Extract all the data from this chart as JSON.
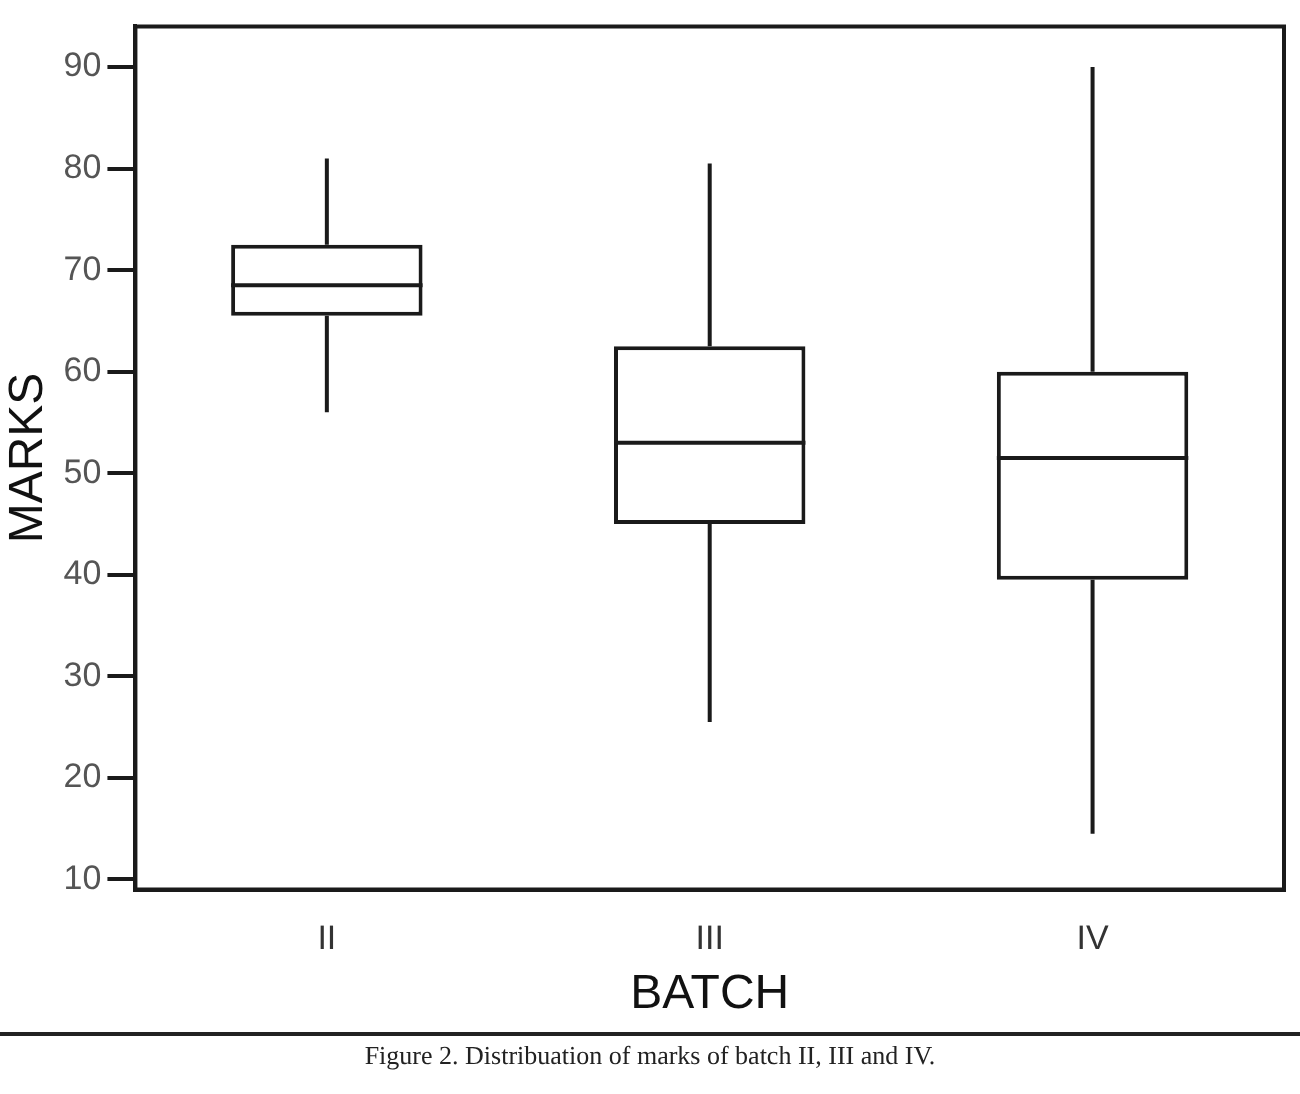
{
  "chart_data": {
    "type": "box",
    "xlabel": "BATCH",
    "ylabel": "MARKS",
    "categories": [
      "II",
      "III",
      "IV"
    ],
    "boxes": [
      {
        "low": 56,
        "q1": 65.5,
        "median": 68.5,
        "q3": 72.5,
        "high": 81
      },
      {
        "low": 25.5,
        "q1": 45,
        "median": 53,
        "q3": 62.5,
        "high": 80.5
      },
      {
        "low": 14.5,
        "q1": 39.5,
        "median": 51.5,
        "q3": 60,
        "high": 90
      }
    ],
    "color": "#1a1a1a",
    "ylim": [
      9,
      94
    ],
    "yticks": [
      10,
      20,
      30,
      40,
      50,
      60,
      70,
      80,
      90
    ],
    "grid": false,
    "legend": false,
    "annotations": [
      "Figure 2. Distribuation of marks of batch II, III and IV."
    ]
  }
}
